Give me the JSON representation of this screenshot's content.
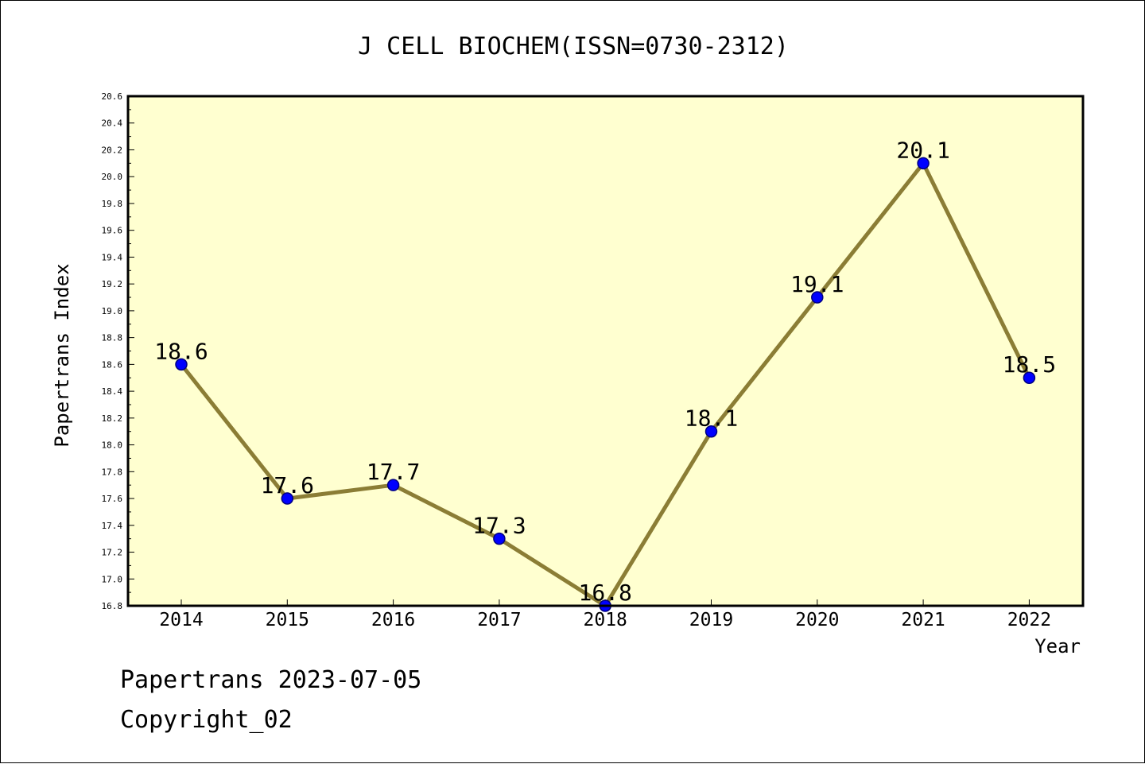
{
  "chart_data": {
    "type": "line",
    "title": "J CELL BIOCHEM(ISSN=0730-2312)",
    "xlabel": "Year",
    "ylabel": "Papertrans Index",
    "categories": [
      "2014",
      "2015",
      "2016",
      "2017",
      "2018",
      "2019",
      "2020",
      "2021",
      "2022"
    ],
    "values": [
      18.6,
      17.6,
      17.7,
      17.3,
      16.8,
      18.1,
      19.1,
      20.1,
      18.5
    ],
    "data_labels": [
      "18.6",
      "17.6",
      "17.7",
      "17.3",
      "16.8",
      "18.1",
      "19.1",
      "20.1",
      "18.5"
    ],
    "ylim": [
      16.8,
      20.6
    ],
    "yticks": [
      "16.8",
      "17.0",
      "17.2",
      "17.4",
      "17.6",
      "17.8",
      "18.0",
      "18.2",
      "18.4",
      "18.6",
      "18.8",
      "19.0",
      "19.2",
      "19.4",
      "19.6",
      "19.8",
      "20.0",
      "20.2",
      "20.4",
      "20.6"
    ],
    "grid": false,
    "colors": {
      "plot_background": "#ffffd0",
      "line": "#8b7d35",
      "marker": "#0000ff",
      "marker_edge": "#000080"
    }
  },
  "footer": {
    "line1": "Papertrans 2023-07-05",
    "line2": "Copyright_02"
  }
}
